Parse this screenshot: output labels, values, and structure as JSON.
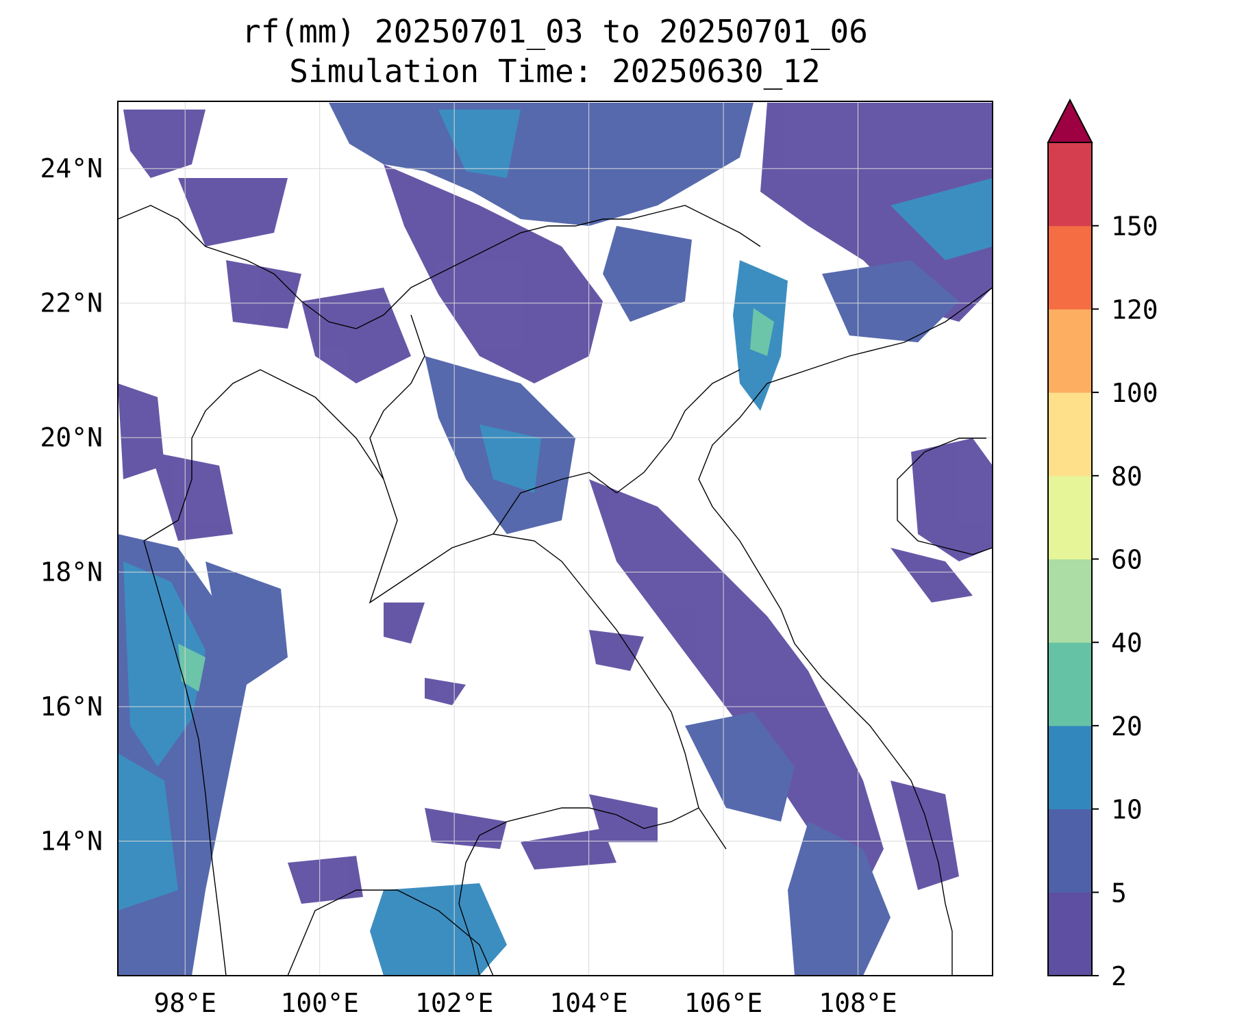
{
  "title": {
    "line1": "rf(mm) 20250701_03 to 20250701_06",
    "line2": "Simulation Time: 20250630_12"
  },
  "map": {
    "lon_range": [
      97.0,
      110.0
    ],
    "lat_range": [
      12.0,
      25.0
    ],
    "lon_ticks": [
      {
        "value": 98,
        "label": "98°E"
      },
      {
        "value": 100,
        "label": "100°E"
      },
      {
        "value": 102,
        "label": "102°E"
      },
      {
        "value": 104,
        "label": "104°E"
      },
      {
        "value": 106,
        "label": "106°E"
      },
      {
        "value": 108,
        "label": "108°E"
      }
    ],
    "lat_ticks": [
      {
        "value": 24,
        "label": "24°N"
      },
      {
        "value": 22,
        "label": "22°N"
      },
      {
        "value": 20,
        "label": "20°N"
      },
      {
        "value": 18,
        "label": "18°N"
      },
      {
        "value": 16,
        "label": "16°N"
      },
      {
        "value": 14,
        "label": "14°N"
      }
    ],
    "gridlines": true,
    "coastline_color": "#000000"
  },
  "colorbar": {
    "levels": [
      "2",
      "5",
      "10",
      "20",
      "40",
      "60",
      "80",
      "100",
      "120",
      "150"
    ],
    "colors": [
      "#5e4fa2",
      "#4e61a9",
      "#3288bd",
      "#66c2a5",
      "#abdda4",
      "#e6f598",
      "#fee08b",
      "#fdae61",
      "#f46d43",
      "#d53e4f"
    ],
    "extend_color": "#9e0142",
    "extend": "max"
  }
}
